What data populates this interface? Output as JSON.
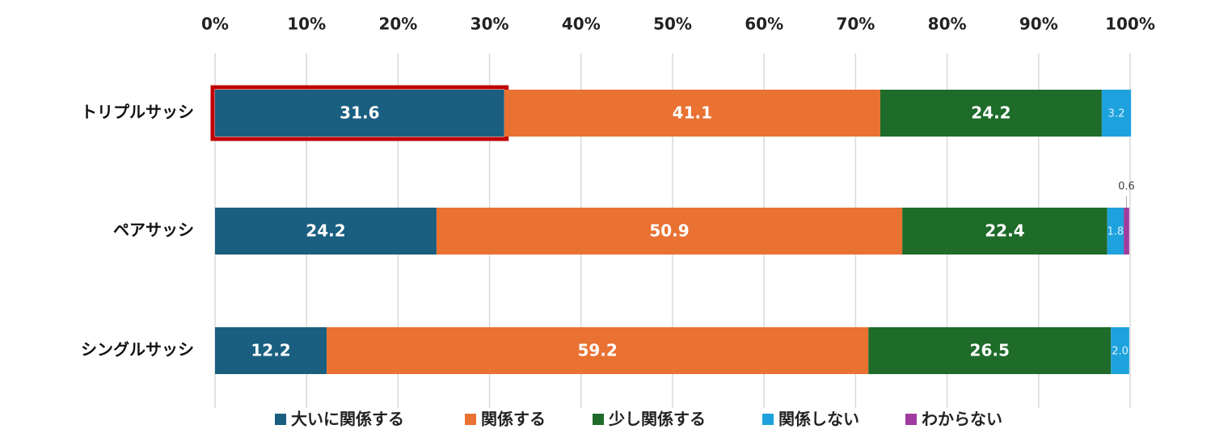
{
  "chart_data": {
    "type": "stacked-bar-horizontal",
    "categories": [
      "トリプルサッシ",
      "ペアサッシ",
      "シングルサッシ"
    ],
    "series": [
      {
        "name": "大いに関係する",
        "color": "#1a5f80",
        "values": [
          31.6,
          24.2,
          12.2
        ]
      },
      {
        "name": "関係する",
        "color": "#e97132",
        "values": [
          41.1,
          50.9,
          59.2
        ]
      },
      {
        "name": "少し関係する",
        "color": "#1e6b2a",
        "values": [
          24.2,
          22.4,
          26.5
        ]
      },
      {
        "name": "関係しない",
        "color": "#1ea2dd",
        "values": [
          3.2,
          1.8,
          2.0
        ],
        "value_labels": [
          "3.2",
          "1.8",
          "2.0"
        ]
      },
      {
        "name": "わからない",
        "color": "#a03ca0",
        "values": [
          null,
          0.6,
          null
        ]
      }
    ],
    "xlim": [
      0,
      100
    ],
    "xticks": [
      {
        "value": 0,
        "label": "0%"
      },
      {
        "value": 10,
        "label": "10%"
      },
      {
        "value": 20,
        "label": "20%"
      },
      {
        "value": 30,
        "label": "30%"
      },
      {
        "value": 40,
        "label": "40%"
      },
      {
        "value": 50,
        "label": "50%"
      },
      {
        "value": 60,
        "label": "60%"
      },
      {
        "value": 70,
        "label": "70%"
      },
      {
        "value": 80,
        "label": "80%"
      },
      {
        "value": 90,
        "label": "90%"
      },
      {
        "value": 100,
        "label": "100%"
      }
    ],
    "grid": true,
    "legend": "bottom"
  }
}
